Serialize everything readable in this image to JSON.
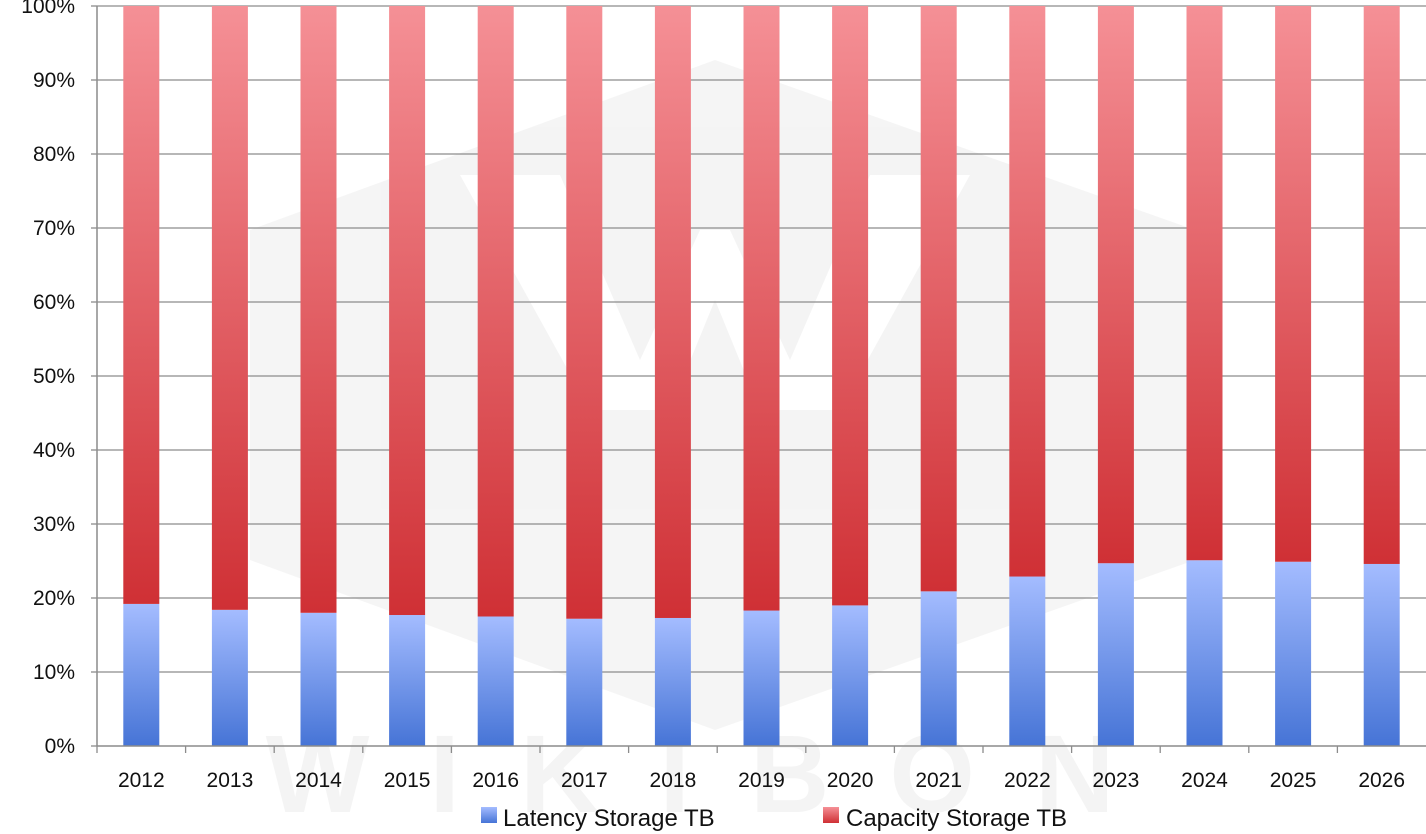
{
  "chart_data": {
    "type": "bar",
    "stacked": true,
    "normalized_percent": true,
    "categories": [
      "2012",
      "2013",
      "2014",
      "2015",
      "2016",
      "2017",
      "2018",
      "2019",
      "2020",
      "2021",
      "2022",
      "2023",
      "2024",
      "2025",
      "2026"
    ],
    "series": [
      {
        "name": "Latency Storage TB",
        "values": [
          19.2,
          18.4,
          18.0,
          17.7,
          17.5,
          17.2,
          17.3,
          18.3,
          19.0,
          20.9,
          22.9,
          24.7,
          25.1,
          24.9,
          24.6
        ],
        "color": "#5a8be0"
      },
      {
        "name": "Capacity Storage TB",
        "values": [
          80.8,
          81.6,
          82.0,
          82.3,
          82.5,
          82.8,
          82.7,
          81.7,
          81.0,
          79.1,
          77.1,
          75.3,
          74.9,
          75.1,
          75.4
        ],
        "color": "#d9414a"
      }
    ],
    "y_ticks": [
      "0%",
      "10%",
      "20%",
      "30%",
      "40%",
      "50%",
      "60%",
      "70%",
      "80%",
      "90%",
      "100%"
    ],
    "ylim": [
      0,
      100
    ],
    "grid": true,
    "legend_position": "bottom",
    "watermark": "WIKIBON"
  }
}
